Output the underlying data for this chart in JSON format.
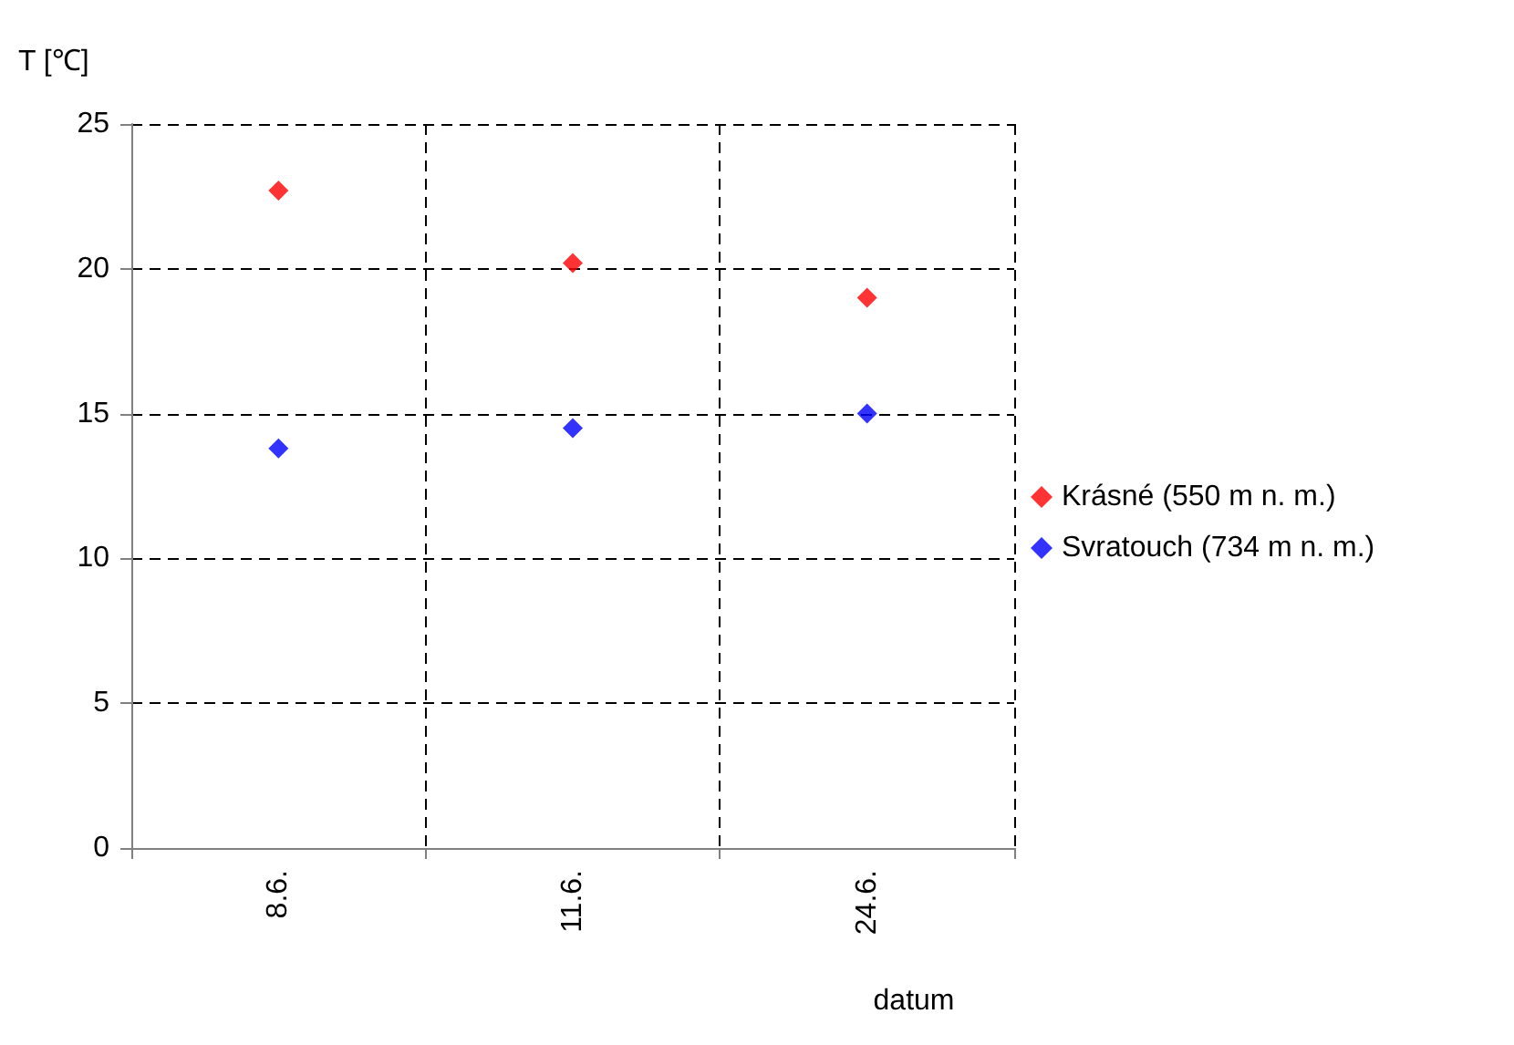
{
  "chart_data": {
    "type": "scatter",
    "xlabel": "datum",
    "ylabel": "T [℃]",
    "categories": [
      "8.6.",
      "11.6.",
      "24.6."
    ],
    "series": [
      {
        "name": "Krásné (550 m n. m.)",
        "color": "#ff0000",
        "values": [
          22.7,
          20.2,
          19.0
        ]
      },
      {
        "name": "Svratouch (734 m n. m.)",
        "color": "#0000ff",
        "values": [
          13.8,
          14.5,
          15.0
        ]
      }
    ],
    "ylim": [
      0,
      25
    ],
    "yticks": [
      0,
      5,
      10,
      15,
      20,
      25
    ],
    "grid": true,
    "legend": "right",
    "marker": "diamond"
  }
}
